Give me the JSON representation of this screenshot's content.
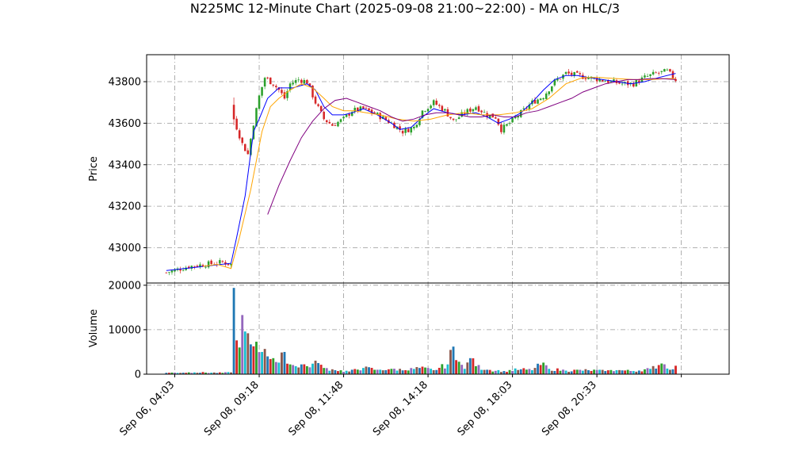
{
  "chart_data": {
    "type": "candlestick",
    "title": "N225MC 12-Minute Chart (2025-09-08 21:00~22:00) - MA on HLC/3",
    "price_panel": {
      "ylabel": "Price",
      "ylim": [
        42830,
        43930
      ],
      "yticks": [
        43000,
        43200,
        43400,
        43600,
        43800
      ],
      "grid": true,
      "grid_style": "dash-dot",
      "up_color": "#2ca02c",
      "down_color": "#d62728"
    },
    "volume_panel": {
      "ylabel": "Volume",
      "ylim": [
        0,
        20500
      ],
      "yticks": [
        0,
        10000,
        20000
      ],
      "bar_colors": [
        "#1f77b4",
        "#d62728",
        "#2ca02c",
        "#9467bd",
        "#17becf",
        "#8c564b"
      ]
    },
    "x_axis": {
      "index_range": [
        -7,
        200
      ],
      "ticks": [
        {
          "index": 3,
          "label": "Sep 06, 04:03"
        },
        {
          "index": 33,
          "label": "Sep 08, 09:18"
        },
        {
          "index": 63,
          "label": "Sep 08, 11:48"
        },
        {
          "index": 93,
          "label": "Sep 08, 14:18"
        },
        {
          "index": 123,
          "label": "Sep 08, 18:03"
        },
        {
          "index": 153,
          "label": "Sep 08, 20:33"
        },
        {
          "index": 183,
          "label": ""
        }
      ]
    },
    "candle_count": 182,
    "close_anchors": [
      [
        0,
        42880
      ],
      [
        8,
        42910
      ],
      [
        14,
        42920
      ],
      [
        20,
        42930
      ],
      [
        23,
        42920
      ],
      [
        24,
        43620
      ],
      [
        27,
        43500
      ],
      [
        29,
        43450
      ],
      [
        31,
        43600
      ],
      [
        33,
        43730
      ],
      [
        35,
        43820
      ],
      [
        38,
        43790
      ],
      [
        40,
        43760
      ],
      [
        42,
        43720
      ],
      [
        44,
        43790
      ],
      [
        47,
        43810
      ],
      [
        50,
        43800
      ],
      [
        53,
        43700
      ],
      [
        56,
        43620
      ],
      [
        59,
        43590
      ],
      [
        63,
        43620
      ],
      [
        66,
        43660
      ],
      [
        70,
        43670
      ],
      [
        75,
        43640
      ],
      [
        80,
        43600
      ],
      [
        84,
        43560
      ],
      [
        88,
        43580
      ],
      [
        91,
        43660
      ],
      [
        95,
        43700
      ],
      [
        99,
        43660
      ],
      [
        102,
        43610
      ],
      [
        106,
        43650
      ],
      [
        110,
        43680
      ],
      [
        114,
        43640
      ],
      [
        117,
        43630
      ],
      [
        119,
        43570
      ],
      [
        122,
        43600
      ],
      [
        126,
        43650
      ],
      [
        130,
        43700
      ],
      [
        134,
        43730
      ],
      [
        138,
        43800
      ],
      [
        142,
        43840
      ],
      [
        146,
        43830
      ],
      [
        150,
        43820
      ],
      [
        154,
        43810
      ],
      [
        158,
        43800
      ],
      [
        162,
        43790
      ],
      [
        166,
        43790
      ],
      [
        170,
        43820
      ],
      [
        174,
        43840
      ],
      [
        178,
        43850
      ],
      [
        181,
        43810
      ]
    ],
    "volume_anchors": [
      [
        0,
        300
      ],
      [
        10,
        400
      ],
      [
        20,
        300
      ],
      [
        23,
        400
      ],
      [
        24,
        19400
      ],
      [
        25,
        7600
      ],
      [
        26,
        6000
      ],
      [
        27,
        13300
      ],
      [
        28,
        9600
      ],
      [
        29,
        9200
      ],
      [
        30,
        6700
      ],
      [
        32,
        7300
      ],
      [
        34,
        5000
      ],
      [
        36,
        4000
      ],
      [
        38,
        3600
      ],
      [
        40,
        2600
      ],
      [
        42,
        5000
      ],
      [
        44,
        2200
      ],
      [
        46,
        1800
      ],
      [
        48,
        2200
      ],
      [
        50,
        1800
      ],
      [
        54,
        2500
      ],
      [
        56,
        1400
      ],
      [
        60,
        900
      ],
      [
        65,
        600
      ],
      [
        70,
        1400
      ],
      [
        75,
        1000
      ],
      [
        80,
        1200
      ],
      [
        85,
        900
      ],
      [
        90,
        1400
      ],
      [
        95,
        900
      ],
      [
        100,
        2200
      ],
      [
        102,
        6200
      ],
      [
        104,
        2800
      ],
      [
        106,
        1200
      ],
      [
        108,
        3600
      ],
      [
        110,
        1800
      ],
      [
        114,
        1000
      ],
      [
        120,
        700
      ],
      [
        126,
        1100
      ],
      [
        130,
        900
      ],
      [
        134,
        2600
      ],
      [
        136,
        1200
      ],
      [
        142,
        800
      ],
      [
        150,
        900
      ],
      [
        156,
        700
      ],
      [
        160,
        900
      ],
      [
        166,
        700
      ],
      [
        172,
        1200
      ],
      [
        176,
        2400
      ],
      [
        180,
        1100
      ],
      [
        181,
        1900
      ]
    ],
    "moving_averages": [
      {
        "color": "#0000ff",
        "points": [
          [
            0,
            42890
          ],
          [
            10,
            42905
          ],
          [
            23,
            42925
          ],
          [
            25,
            43050
          ],
          [
            28,
            43250
          ],
          [
            31,
            43560
          ],
          [
            33,
            43620
          ],
          [
            36,
            43720
          ],
          [
            40,
            43770
          ],
          [
            45,
            43770
          ],
          [
            50,
            43790
          ],
          [
            53,
            43760
          ],
          [
            56,
            43680
          ],
          [
            59,
            43640
          ],
          [
            63,
            43640
          ],
          [
            66,
            43650
          ],
          [
            70,
            43670
          ],
          [
            75,
            43640
          ],
          [
            80,
            43600
          ],
          [
            83,
            43570
          ],
          [
            87,
            43580
          ],
          [
            91,
            43630
          ],
          [
            95,
            43670
          ],
          [
            100,
            43650
          ],
          [
            105,
            43640
          ],
          [
            110,
            43650
          ],
          [
            114,
            43630
          ],
          [
            118,
            43600
          ],
          [
            122,
            43620
          ],
          [
            126,
            43650
          ],
          [
            130,
            43700
          ],
          [
            134,
            43760
          ],
          [
            138,
            43810
          ],
          [
            142,
            43830
          ],
          [
            146,
            43830
          ],
          [
            150,
            43820
          ],
          [
            155,
            43810
          ],
          [
            160,
            43800
          ],
          [
            165,
            43790
          ],
          [
            170,
            43800
          ],
          [
            175,
            43820
          ],
          [
            181,
            43840
          ]
        ]
      },
      {
        "color": "#ffa500",
        "points": [
          [
            13,
            42910
          ],
          [
            18,
            42920
          ],
          [
            23,
            42900
          ],
          [
            26,
            43050
          ],
          [
            30,
            43280
          ],
          [
            34,
            43560
          ],
          [
            37,
            43680
          ],
          [
            40,
            43720
          ],
          [
            44,
            43760
          ],
          [
            48,
            43790
          ],
          [
            52,
            43770
          ],
          [
            56,
            43720
          ],
          [
            59,
            43680
          ],
          [
            63,
            43660
          ],
          [
            67,
            43660
          ],
          [
            71,
            43650
          ],
          [
            76,
            43640
          ],
          [
            82,
            43620
          ],
          [
            88,
            43610
          ],
          [
            94,
            43620
          ],
          [
            100,
            43640
          ],
          [
            106,
            43650
          ],
          [
            112,
            43640
          ],
          [
            118,
            43640
          ],
          [
            124,
            43650
          ],
          [
            130,
            43670
          ],
          [
            136,
            43720
          ],
          [
            142,
            43790
          ],
          [
            148,
            43820
          ],
          [
            154,
            43820
          ],
          [
            160,
            43815
          ],
          [
            166,
            43810
          ],
          [
            172,
            43810
          ],
          [
            178,
            43815
          ],
          [
            181,
            43815
          ]
        ]
      },
      {
        "color": "#800080",
        "points": [
          [
            36,
            43160
          ],
          [
            40,
            43300
          ],
          [
            44,
            43420
          ],
          [
            48,
            43530
          ],
          [
            52,
            43610
          ],
          [
            56,
            43670
          ],
          [
            60,
            43710
          ],
          [
            64,
            43720
          ],
          [
            68,
            43700
          ],
          [
            72,
            43680
          ],
          [
            76,
            43660
          ],
          [
            80,
            43630
          ],
          [
            84,
            43610
          ],
          [
            88,
            43620
          ],
          [
            92,
            43640
          ],
          [
            96,
            43650
          ],
          [
            100,
            43650
          ],
          [
            104,
            43640
          ],
          [
            108,
            43630
          ],
          [
            112,
            43630
          ],
          [
            116,
            43640
          ],
          [
            120,
            43630
          ],
          [
            124,
            43630
          ],
          [
            128,
            43650
          ],
          [
            132,
            43660
          ],
          [
            136,
            43680
          ],
          [
            140,
            43700
          ],
          [
            144,
            43720
          ],
          [
            148,
            43750
          ],
          [
            152,
            43770
          ],
          [
            156,
            43790
          ],
          [
            160,
            43800
          ],
          [
            164,
            43810
          ],
          [
            168,
            43810
          ],
          [
            172,
            43815
          ],
          [
            176,
            43815
          ],
          [
            181,
            43810
          ]
        ]
      }
    ]
  }
}
